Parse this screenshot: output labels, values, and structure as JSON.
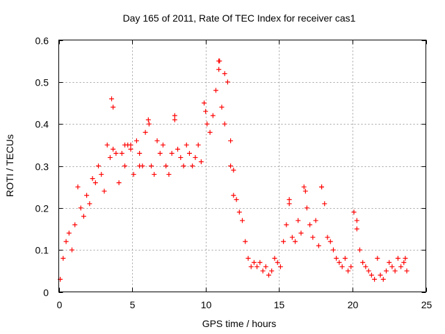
{
  "chart_data": {
    "type": "scatter",
    "title": "Day 165 of 2011, Rate Of TEC Index for receiver cas1",
    "xlabel": "GPS time / hours",
    "ylabel": "ROTI / TECUs",
    "xlim": [
      0,
      25
    ],
    "ylim": [
      0,
      0.6
    ],
    "xticks": [
      0,
      5,
      10,
      15,
      20,
      25
    ],
    "xtick_labels": [
      "0",
      "5",
      "10",
      "15",
      "20",
      "25"
    ],
    "yticks": [
      0,
      0.1,
      0.2,
      0.3,
      0.4,
      0.5,
      0.6
    ],
    "ytick_labels": [
      "0",
      "0.1",
      "0.2",
      "0.3",
      "0.4",
      "0.5",
      "0.6"
    ],
    "grid": true,
    "marker": "+",
    "series_color": "#ff0000",
    "series": [
      {
        "name": "ROTI",
        "x": [
          0.1,
          0.3,
          0.5,
          0.7,
          0.9,
          1.1,
          1.3,
          1.5,
          1.7,
          1.9,
          2.1,
          2.3,
          2.5,
          2.7,
          2.9,
          3.1,
          3.3,
          3.5,
          3.7,
          3.9,
          4.1,
          4.3,
          4.5,
          4.7,
          4.9,
          5.1,
          5.3,
          5.5,
          5.7,
          5.9,
          6.1,
          6.3,
          6.5,
          6.7,
          6.9,
          7.1,
          7.3,
          7.5,
          7.7,
          7.9,
          8.1,
          8.3,
          8.5,
          8.7,
          8.9,
          9.1,
          9.3,
          9.5,
          9.7,
          9.9,
          10.1,
          10.3,
          10.5,
          10.7,
          10.9,
          11.1,
          11.3,
          11.5,
          11.7,
          11.9,
          12.1,
          12.3,
          12.5,
          12.7,
          12.9,
          13.1,
          13.3,
          13.5,
          13.7,
          13.9,
          14.1,
          14.3,
          14.5,
          14.7,
          14.9,
          15.1,
          15.3,
          15.5,
          15.7,
          15.9,
          16.1,
          16.3,
          16.5,
          16.7,
          16.9,
          17.1,
          17.3,
          17.5,
          17.7,
          17.9,
          18.1,
          18.3,
          18.5,
          18.7,
          18.9,
          19.1,
          19.3,
          19.5,
          19.7,
          19.9,
          20.1,
          20.3,
          20.5,
          20.7,
          20.9,
          21.1,
          21.3,
          21.5,
          21.7,
          21.9,
          22.1,
          22.3,
          22.5,
          22.7,
          22.9,
          23.1,
          23.3,
          23.5,
          23.7,
          3.6,
          3.7,
          10.9,
          10.95,
          11.3,
          6.15,
          7.9,
          10.0,
          11.7,
          11.9,
          16.8,
          17.9,
          15.7,
          20.3,
          23.6,
          4.5,
          4.9,
          5.5
        ],
        "y": [
          0.03,
          0.08,
          0.12,
          0.14,
          0.1,
          0.16,
          0.25,
          0.2,
          0.18,
          0.23,
          0.21,
          0.27,
          0.26,
          0.3,
          0.28,
          0.24,
          0.35,
          0.32,
          0.34,
          0.33,
          0.26,
          0.33,
          0.3,
          0.35,
          0.34,
          0.28,
          0.36,
          0.33,
          0.3,
          0.38,
          0.41,
          0.3,
          0.28,
          0.36,
          0.33,
          0.35,
          0.3,
          0.28,
          0.33,
          0.42,
          0.34,
          0.32,
          0.3,
          0.35,
          0.33,
          0.3,
          0.32,
          0.35,
          0.31,
          0.45,
          0.4,
          0.38,
          0.42,
          0.48,
          0.55,
          0.44,
          0.4,
          0.5,
          0.3,
          0.23,
          0.22,
          0.19,
          0.17,
          0.12,
          0.08,
          0.06,
          0.07,
          0.06,
          0.07,
          0.05,
          0.06,
          0.04,
          0.05,
          0.08,
          0.07,
          0.06,
          0.12,
          0.16,
          0.22,
          0.13,
          0.12,
          0.17,
          0.14,
          0.25,
          0.2,
          0.16,
          0.13,
          0.17,
          0.11,
          0.25,
          0.21,
          0.13,
          0.12,
          0.1,
          0.08,
          0.07,
          0.06,
          0.08,
          0.05,
          0.06,
          0.19,
          0.15,
          0.1,
          0.07,
          0.06,
          0.05,
          0.04,
          0.03,
          0.08,
          0.04,
          0.03,
          0.05,
          0.07,
          0.06,
          0.05,
          0.08,
          0.06,
          0.07,
          0.05,
          0.46,
          0.44,
          0.53,
          0.55,
          0.52,
          0.4,
          0.41,
          0.43,
          0.36,
          0.29,
          0.24,
          0.25,
          0.21,
          0.17,
          0.08,
          0.35,
          0.35,
          0.3
        ]
      }
    ]
  }
}
